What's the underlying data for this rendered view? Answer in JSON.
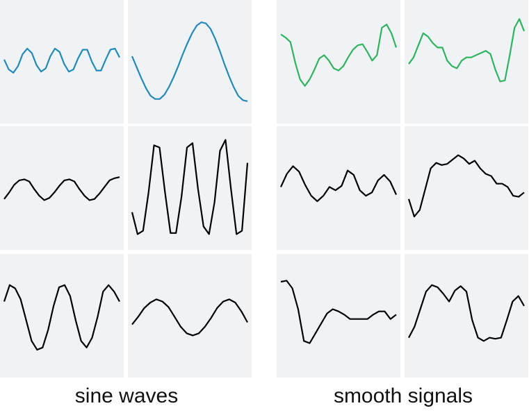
{
  "group_labels": [
    "sine waves",
    "smooth signals"
  ],
  "chart_data": [
    {
      "type": "line",
      "color": "#2389b8",
      "ylim": [
        0,
        100
      ],
      "values": [
        52,
        43,
        40,
        46,
        57,
        62,
        58,
        47,
        41,
        44,
        55,
        62,
        59,
        48,
        41,
        43,
        53,
        61,
        61,
        50,
        42,
        42,
        52,
        61,
        62,
        54
      ]
    },
    {
      "type": "line",
      "color": "#2389b8",
      "ylim": [
        0,
        100
      ],
      "values": [
        55,
        45,
        35,
        26,
        19,
        16,
        16,
        20,
        27,
        36,
        46,
        57,
        67,
        76,
        83,
        86,
        85,
        80,
        71,
        60,
        48,
        37,
        27,
        19,
        15,
        14
      ]
    },
    {
      "type": "line",
      "color": "#000000",
      "ylim": [
        0,
        100
      ],
      "values": [
        40,
        46,
        53,
        57,
        58,
        56,
        49,
        43,
        39,
        41,
        46,
        52,
        57,
        58,
        56,
        49,
        43,
        39,
        40,
        45,
        51,
        57,
        59,
        60
      ]
    },
    {
      "type": "line",
      "color": "#000000",
      "ylim": [
        0,
        100
      ],
      "values": [
        28,
        8,
        11,
        46,
        89,
        87,
        46,
        9,
        9,
        42,
        87,
        91,
        49,
        15,
        8,
        37,
        84,
        94,
        49,
        8,
        11,
        73
      ]
    },
    {
      "type": "line",
      "color": "#000000",
      "ylim": [
        0,
        100
      ],
      "values": [
        63,
        78,
        75,
        65,
        46,
        27,
        19,
        21,
        37,
        59,
        76,
        78,
        68,
        46,
        27,
        21,
        30,
        49,
        72,
        78,
        72,
        63
      ]
    },
    {
      "type": "line",
      "color": "#000000",
      "ylim": [
        0,
        100
      ],
      "values": [
        42,
        49,
        57,
        62,
        65,
        63,
        58,
        49,
        40,
        34,
        32,
        34,
        40,
        48,
        57,
        63,
        65,
        62,
        54,
        44
      ]
    },
    {
      "type": "line",
      "color": "#2fb35e",
      "ylim": [
        0,
        100
      ],
      "values": [
        75,
        72,
        68,
        49,
        34,
        28,
        34,
        43,
        53,
        56,
        51,
        44,
        42,
        46,
        54,
        61,
        65,
        66,
        59,
        51,
        56,
        81,
        84,
        76,
        63
      ]
    },
    {
      "type": "line",
      "color": "#2fb35e",
      "ylim": [
        0,
        100
      ],
      "values": [
        48,
        54,
        65,
        76,
        73,
        67,
        63,
        63,
        51,
        46,
        44,
        51,
        54,
        54,
        56,
        58,
        60,
        57,
        43,
        32,
        33,
        56,
        81,
        89,
        78
      ]
    },
    {
      "type": "line",
      "color": "#000000",
      "ylim": [
        0,
        100
      ],
      "values": [
        51,
        63,
        70,
        65,
        53,
        43,
        38,
        43,
        51,
        48,
        52,
        66,
        62,
        48,
        43,
        46,
        57,
        62,
        56,
        44
      ]
    },
    {
      "type": "line",
      "color": "#000000",
      "ylim": [
        0,
        100
      ],
      "values": [
        40,
        24,
        30,
        49,
        68,
        73,
        71,
        72,
        76,
        80,
        77,
        72,
        75,
        68,
        63,
        61,
        54,
        54,
        51,
        43,
        42,
        46
      ]
    },
    {
      "type": "line",
      "color": "#000000",
      "ylim": [
        0,
        100
      ],
      "values": [
        81,
        82,
        75,
        56,
        27,
        25,
        34,
        43,
        52,
        56,
        54,
        51,
        47,
        47,
        47,
        47,
        51,
        54,
        54,
        47,
        51
      ]
    },
    {
      "type": "line",
      "color": "#000000",
      "ylim": [
        0,
        100
      ],
      "values": [
        30,
        40,
        56,
        72,
        78,
        76,
        70,
        63,
        73,
        77,
        72,
        46,
        30,
        27,
        30,
        29,
        30,
        46,
        63,
        68,
        59
      ]
    }
  ]
}
